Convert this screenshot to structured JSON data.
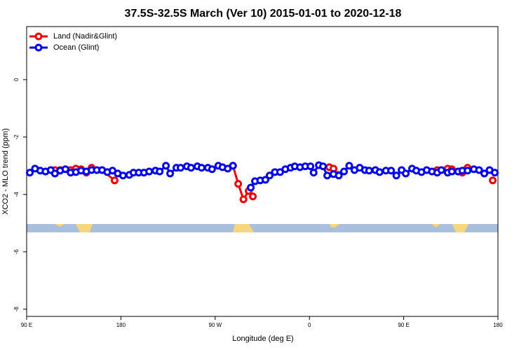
{
  "chart_data": {
    "type": "line",
    "title": "37.5S-32.5S March (Ver 10)   2015-01-01 to 2020-12-18",
    "x_label": "Longitude (deg E)",
    "y_label": "XCO2 - MLO trend (ppm)",
    "xlim": [
      90,
      540
    ],
    "ylim": [
      -8.25,
      1.85
    ],
    "xticks": [
      {
        "value": 90,
        "label": "90 E"
      },
      180,
      {
        "value": 270,
        "label": "90 W"
      },
      {
        "value": 360,
        "label": "0"
      },
      {
        "value": 450,
        "label": "90 E"
      },
      {
        "value": 540,
        "label": "180"
      }
    ],
    "yticks": [
      0,
      -2,
      -4,
      -6,
      -8
    ],
    "legend": "top-left",
    "series": [
      {
        "name": "Land (Nadir&Glint)",
        "color": "#ee0000",
        "x": [
          117,
          122,
          132,
          137,
          142,
          147,
          152,
          162,
          174,
          null,
          287,
          292,
          297,
          302,
          306,
          null,
          379,
          383,
          388,
          null,
          482,
          492,
          496,
          502,
          506,
          511,
          null,
          535
        ],
        "values": [
          -3.15,
          -3.15,
          -3.15,
          -3.1,
          -3.12,
          -3.24,
          -3.07,
          -3.15,
          -3.51,
          null,
          -3.0,
          -3.63,
          -4.17,
          -3.88,
          -4.07,
          null,
          -3.05,
          -3.1,
          -3.32,
          null,
          -3.15,
          -3.1,
          -3.12,
          -3.2,
          -3.24,
          -3.07,
          null,
          -3.51
        ]
      },
      {
        "name": "Ocean (Glint)",
        "color": "#0000ee",
        "x": [
          93,
          98,
          103,
          108,
          113,
          117,
          122,
          127,
          132,
          137,
          142,
          147,
          152,
          157,
          162,
          167,
          172,
          177,
          182,
          188,
          192,
          197,
          202,
          207,
          213,
          217,
          223,
          227,
          233,
          237,
          243,
          247,
          253,
          257,
          263,
          267,
          273,
          277,
          282,
          287,
          null,
          304,
          308,
          313,
          318,
          322,
          327,
          332,
          337,
          342,
          346,
          351,
          356,
          361,
          364,
          369,
          373,
          377,
          383,
          388,
          393,
          398,
          403,
          408,
          413,
          417,
          423,
          427,
          433,
          438,
          443,
          448,
          452,
          458,
          462,
          467,
          472,
          477,
          482,
          486,
          492,
          496,
          502,
          506,
          511,
          517,
          522,
          527,
          532,
          537
        ],
        "values": [
          -3.24,
          -3.1,
          -3.17,
          -3.2,
          -3.15,
          -3.27,
          -3.17,
          -3.12,
          -3.24,
          -3.22,
          -3.17,
          -3.2,
          -3.15,
          -3.15,
          -3.15,
          -3.22,
          -3.17,
          -3.27,
          -3.34,
          -3.32,
          -3.24,
          -3.24,
          -3.24,
          -3.2,
          -3.17,
          -3.2,
          -3.0,
          -3.27,
          -3.07,
          -3.07,
          -3.02,
          -3.07,
          -3.02,
          -3.07,
          -3.07,
          -3.12,
          -3.0,
          -3.05,
          -3.1,
          -3.0,
          null,
          -3.76,
          -3.54,
          -3.51,
          -3.49,
          -3.34,
          -3.22,
          -3.22,
          -3.12,
          -3.07,
          -3.02,
          -3.05,
          -3.02,
          -3.02,
          -3.24,
          -2.98,
          -3.02,
          -3.34,
          -3.29,
          -3.34,
          -3.2,
          -3.0,
          -3.15,
          -3.07,
          -3.15,
          -3.17,
          -3.15,
          -3.22,
          -3.17,
          -3.17,
          -3.34,
          -3.15,
          -3.27,
          -3.1,
          -3.17,
          -3.22,
          -3.15,
          -3.2,
          -3.24,
          -3.15,
          -3.24,
          -3.2,
          -3.2,
          -3.17,
          -3.17,
          -3.12,
          -3.15,
          -3.27,
          -3.15,
          -3.24
        ]
      }
    ]
  }
}
